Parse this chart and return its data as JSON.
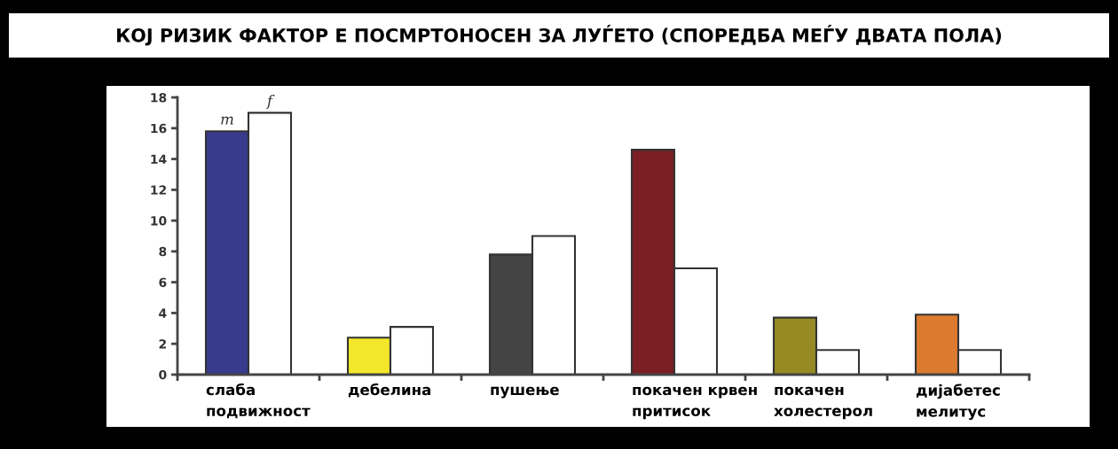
{
  "chart_data": {
    "type": "bar",
    "title": "КОЈ РИЗИК ФАКТОР Е ПОСМРТОНОСЕН ЗА ЛУЃЕТО (СПОРЕДБА МЕЃУ ДВАТА ПОЛА)",
    "categories": [
      "слаба\nподвижност",
      "дебелина",
      "пушење",
      "покачен крвен\nпритисок",
      "покачен\nхолестерол",
      "дијабетес\nмелитус"
    ],
    "series": [
      {
        "name": "m",
        "colors": [
          "#383a8c",
          "#f2e72a",
          "#444444",
          "#7c1f24",
          "#958a23",
          "#dc7b30"
        ],
        "values": [
          15.8,
          2.4,
          7.8,
          14.6,
          3.7,
          3.9
        ]
      },
      {
        "name": "f",
        "color": "#ffffff",
        "values": [
          17.0,
          3.1,
          9.0,
          6.9,
          1.6,
          1.6
        ]
      }
    ],
    "ylim": [
      0,
      18
    ],
    "yticks": [
      0,
      2,
      4,
      6,
      8,
      10,
      12,
      14,
      16,
      18
    ],
    "grid": false,
    "legend": false
  }
}
